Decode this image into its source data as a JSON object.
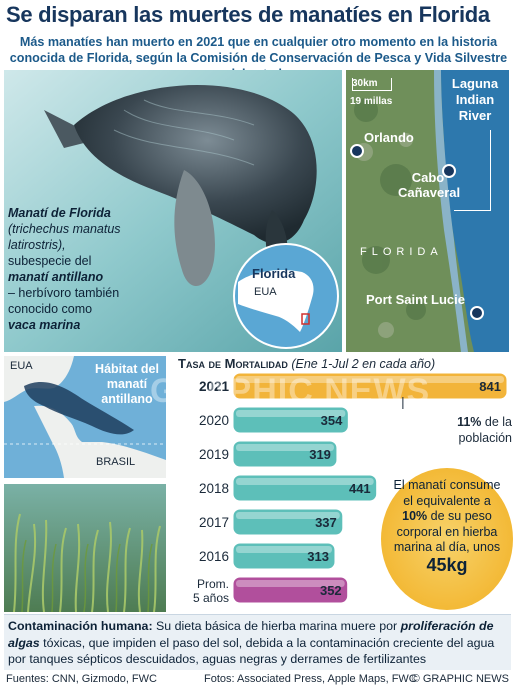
{
  "title": "Se disparan las muertes de manatíes en Florida",
  "subtitle": "Más manatíes han muerto en 2021 que en cualquier otro momento en la historia conocida de Florida, según la Comisión de Conservación de Pesca y Vida Silvestre del estado",
  "manatee_caption": {
    "name": "Manatí de Florida",
    "sci": "(trichechus manatus latirostris),",
    "line2": "subespecie del",
    "subspecies": "manatí antillano",
    "line3": "– herbívoro también conocido como",
    "alias": "vaca marina"
  },
  "inset_map": {
    "label_florida": "Florida",
    "label_eua": "EUA"
  },
  "map": {
    "scale_km": "30km",
    "scale_mi": "19 millas",
    "lagoon": "Laguna Indian River",
    "cities": [
      "Orlando",
      "Cabo Cañaveral",
      "Port Saint Lucie"
    ],
    "state": "FLORIDA"
  },
  "habitat_map": {
    "title": "Hábitat del manatí antillano",
    "eua": "EUA",
    "brasil": "BRASIL"
  },
  "chart_data": {
    "type": "bar",
    "orientation": "horizontal",
    "title": "Tasa de Mortalidad",
    "subtitle": "(Ene 1-Jul 2 en cada año)",
    "categories": [
      "2021",
      "2020",
      "2019",
      "2018",
      "2017",
      "2016",
      "Prom. 5 años"
    ],
    "values": [
      841,
      354,
      319,
      441,
      337,
      313,
      352
    ],
    "colors": [
      "#f2b43a",
      "#5dbfb9",
      "#5dbfb9",
      "#5dbfb9",
      "#5dbfb9",
      "#5dbfb9",
      "#b14f9c"
    ],
    "xlim": [
      0,
      841
    ]
  },
  "pct_note": {
    "value": "11%",
    "text": "de la población"
  },
  "fact": {
    "text1": "El manatí consume el equivalente a",
    "pct": "10%",
    "text2": "de su peso corporal en hierba marina al día, unos",
    "amount": "45kg"
  },
  "bottom": {
    "heading": "Contaminación humana:",
    "text1": "Su dieta básica de hierba marina muere por",
    "phrase": "proliferación de algas",
    "text2": "tóxicas, que impiden el paso del sol, debida a la contaminación creciente del agua por tanques sépticos descuidados, aguas negras y derrames de fertilizantes"
  },
  "footer": {
    "sources": "Fuentes: CNN, Gizmodo, FWC",
    "photos": "Fotos: Associated Press, Apple Maps, FWC",
    "credit": "© GRAPHIC NEWS"
  },
  "watermark": "GRAPHIC NEWS"
}
